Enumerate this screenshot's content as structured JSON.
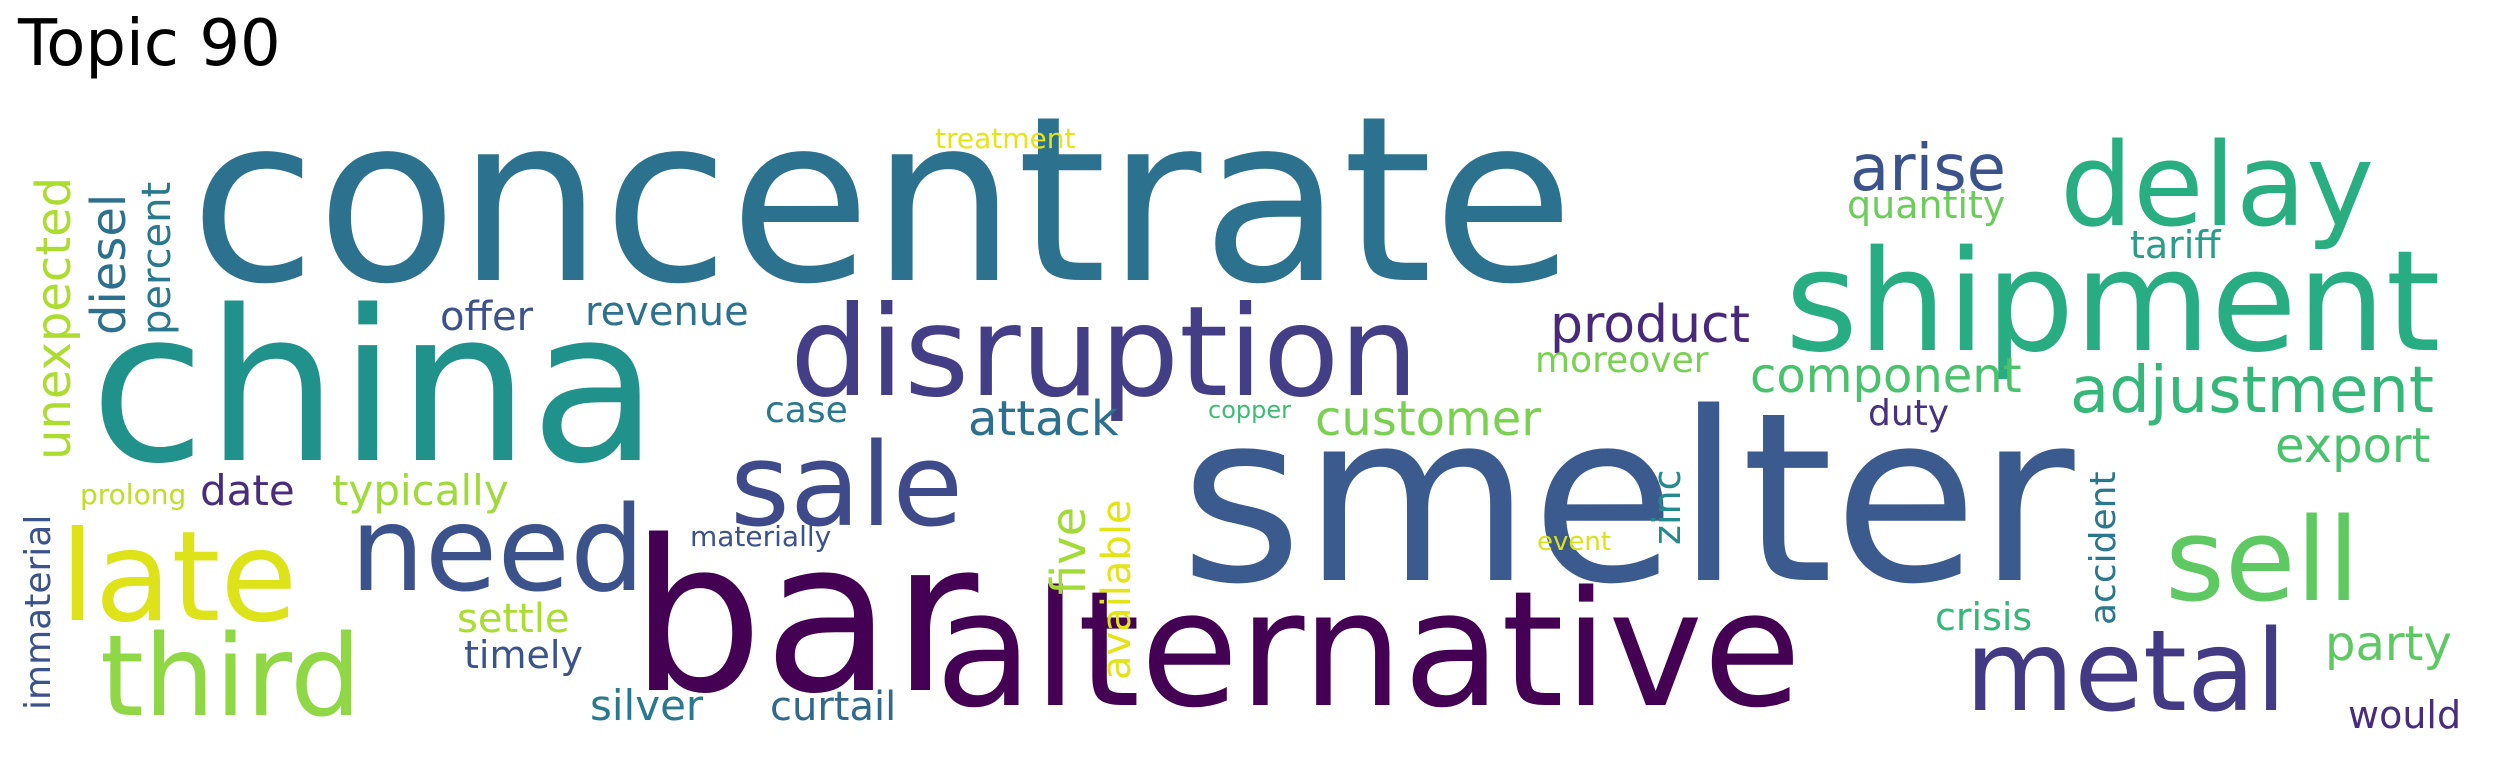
{
  "title": "Topic 90",
  "words": [
    {
      "text": "concentrate",
      "color": "#2c728e"
    },
    {
      "text": "smelter",
      "color": "#3b5a8d"
    },
    {
      "text": "china",
      "color": "#21918c"
    },
    {
      "text": "bar",
      "color": "#440154"
    },
    {
      "text": "alternative",
      "color": "#440154"
    },
    {
      "text": "disruption",
      "color": "#433e85"
    },
    {
      "text": "shipment",
      "color": "#27ad81"
    },
    {
      "text": "delay",
      "color": "#28ae80"
    },
    {
      "text": "sale",
      "color": "#3e4a89"
    },
    {
      "text": "need",
      "color": "#3b528b"
    },
    {
      "text": "late",
      "color": "#dde318"
    },
    {
      "text": "third",
      "color": "#8fd744"
    },
    {
      "text": "metal",
      "color": "#443983"
    },
    {
      "text": "sell",
      "color": "#5ec962"
    },
    {
      "text": "adjustment",
      "color": "#35b779"
    },
    {
      "text": "arise",
      "color": "#3b528b"
    },
    {
      "text": "product",
      "color": "#482878"
    },
    {
      "text": "component",
      "color": "#4ac16d"
    },
    {
      "text": "customer",
      "color": "#7ad151"
    },
    {
      "text": "export",
      "color": "#4ac16d"
    },
    {
      "text": "party",
      "color": "#5ec962"
    },
    {
      "text": "quantity",
      "color": "#6ccd5a"
    },
    {
      "text": "tariff",
      "color": "#2a9c8a"
    },
    {
      "text": "attack",
      "color": "#2d708e"
    },
    {
      "text": "revenue",
      "color": "#2c728e"
    },
    {
      "text": "offer",
      "color": "#3b528b"
    },
    {
      "text": "moreover",
      "color": "#7ad151"
    },
    {
      "text": "duty",
      "color": "#46327e"
    },
    {
      "text": "case",
      "color": "#2a788e"
    },
    {
      "text": "date",
      "color": "#472d7b"
    },
    {
      "text": "typically",
      "color": "#9fda3a"
    },
    {
      "text": "settle",
      "color": "#aadc32"
    },
    {
      "text": "timely",
      "color": "#3b528b"
    },
    {
      "text": "silver",
      "color": "#2a788e"
    },
    {
      "text": "curtail",
      "color": "#31688e"
    },
    {
      "text": "crisis",
      "color": "#35b779"
    },
    {
      "text": "would",
      "color": "#472d7b"
    },
    {
      "text": "treatment",
      "color": "#e5e419"
    },
    {
      "text": "copper",
      "color": "#3dbc74"
    },
    {
      "text": "event",
      "color": "#d8e219"
    },
    {
      "text": "materially",
      "color": "#3b528b"
    },
    {
      "text": "prolong",
      "color": "#bddf26"
    },
    {
      "text": "unexpected",
      "color": "#addc30"
    },
    {
      "text": "diesel",
      "color": "#2d708e"
    },
    {
      "text": "percent",
      "color": "#2a788e"
    },
    {
      "text": "immaterial",
      "color": "#3b528b"
    },
    {
      "text": "five",
      "color": "#a2da37"
    },
    {
      "text": "available",
      "color": "#e3e418"
    },
    {
      "text": "zinc",
      "color": "#238a8d"
    },
    {
      "text": "accident",
      "color": "#2a788e"
    }
  ]
}
